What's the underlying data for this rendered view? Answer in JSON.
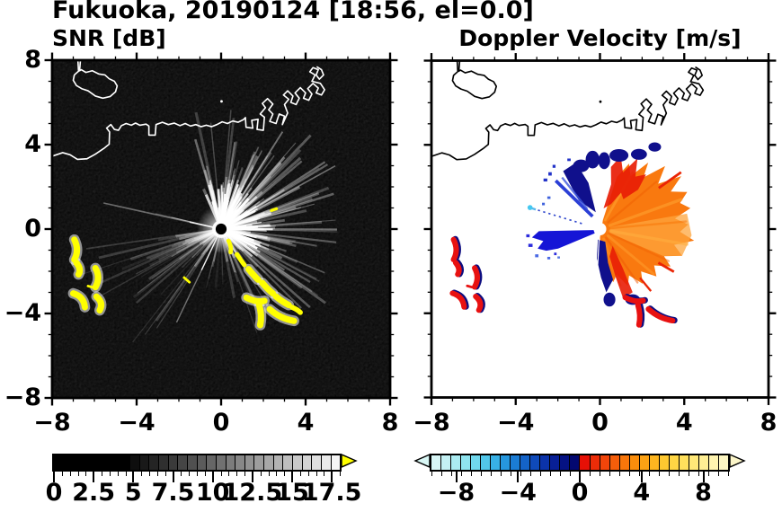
{
  "figure": {
    "title": "Fukuoka, 20190124 [18:56, el=0.0]",
    "station": "Fukuoka",
    "date": "20190124",
    "time": "18:56",
    "elevation": "0.0"
  },
  "axes": {
    "xlim": [
      -8,
      8
    ],
    "ylim": [
      -8,
      8
    ],
    "major_tick_values": [
      -8,
      -4,
      0,
      4,
      8
    ],
    "minor_tick_step": 1
  },
  "panels": [
    {
      "id": "snr",
      "title": "SNR [dB]",
      "xtick_labels": [
        "−8",
        "−4",
        "0",
        "4",
        "8"
      ],
      "ytick_values": [
        8,
        4,
        0,
        -4,
        -8
      ],
      "ytick_labels": [
        "8",
        "4",
        "0",
        "−4",
        "−8"
      ],
      "background": "#000000",
      "coastline_color": "#ffffff",
      "colorbar": {
        "min": 0,
        "max": 18,
        "cells": 30,
        "tick_values": [
          0,
          2.5,
          5,
          7.5,
          10,
          12.5,
          15,
          17.5
        ],
        "tick_labels": [
          "0",
          "2.5",
          "5",
          "7.5",
          "10",
          "12.5",
          "15",
          "17.5"
        ],
        "minor_tick_step": 0.5,
        "style": "grayscale black to white",
        "black_below_value": 5,
        "overflow_arrow_color": "#ffff00"
      }
    },
    {
      "id": "doppler",
      "title": "Doppler Velocity [m/s]",
      "xtick_labels": [
        "−8",
        "−4",
        "0",
        "4",
        "8"
      ],
      "background": "#ffffff",
      "coastline_color": "#000000",
      "colorbar": {
        "min": -9.6,
        "max": 9.6,
        "cells": 30,
        "tick_values": [
          -8,
          -4,
          0,
          4,
          8
        ],
        "tick_labels": [
          "−8",
          "−4",
          "0",
          "4",
          "8"
        ],
        "underflow_arrow_color": "#d9f7f5",
        "overflow_arrow_color": "#fcf6c9",
        "cell_colors": [
          "#d8f6f6",
          "#c4f1f4",
          "#abecf2",
          "#8fe4ef",
          "#71d8ed",
          "#52c7ea",
          "#38b0e5",
          "#2697de",
          "#1b7cd4",
          "#1463c8",
          "#0f4aba",
          "#0b33aa",
          "#081f96",
          "#051283",
          "#030870",
          "#e61006",
          "#ec2c08",
          "#f1450a",
          "#f55e0a",
          "#f8760a",
          "#fa8d0c",
          "#fca214",
          "#fdb520",
          "#fec830",
          "#ffd644",
          "#ffe05c",
          "#ffe878",
          "#ffef94",
          "#fff4b0",
          "#fdf6c2"
        ]
      }
    }
  ],
  "chart_data": [
    {
      "type": "heatmap",
      "title": "SNR [dB]",
      "xlim": [
        -8,
        8
      ],
      "ylim": [
        -8,
        8
      ],
      "xticks": [
        -8,
        -4,
        0,
        4,
        8
      ],
      "yticks": [
        -8,
        -4,
        0,
        4,
        8
      ],
      "minor_tick_step": 1,
      "grid": false,
      "colorbar": {
        "orientation": "horizontal",
        "range": [
          0,
          18
        ],
        "ticks": [
          0,
          2.5,
          5,
          7.5,
          10,
          12.5,
          15,
          17.5
        ],
        "colormap": "black (0-5 dB) stepping to white (18 dB), yellow overflow arrow"
      },
      "content": {
        "radar_center_xy": [
          0,
          0
        ],
        "bright_echo_fan_azimuth_deg": [
          335,
          170
        ],
        "gray_echo_fan_azimuth_deg": [
          205,
          265
        ],
        "blocked_dark_sectors_azimuth_deg": [
          [
            170,
            205
          ],
          [
            265,
            335
          ]
        ],
        "thin_isolated_rays_azimuth_deg": [
          205.5,
          282.5
        ],
        "high_snr_yellow_arc_chain_xy": [
          [
            0.4,
            -0.7
          ],
          [
            1.0,
            -1.5
          ],
          [
            1.5,
            -2.1
          ],
          [
            2.2,
            -2.8
          ],
          [
            2.9,
            -3.4
          ],
          [
            3.6,
            -3.9
          ]
        ],
        "high_snr_yellow_arcs_west_xy": [
          [
            -6.9,
            -1.0
          ],
          [
            -6.8,
            -1.9
          ],
          [
            -5.8,
            -2.3
          ],
          [
            -6.7,
            -3.3
          ],
          [
            -5.7,
            -3.5
          ]
        ],
        "high_snr_yellow_arcs_south_xy": [
          [
            1.6,
            -3.4
          ],
          [
            1.9,
            -4.1
          ],
          [
            2.9,
            -4.1
          ]
        ],
        "isolated_yellow_echo_xy": [
          [
            2.5,
            0.9
          ],
          [
            -1.6,
            -2.4
          ]
        ],
        "coastline": "Hakata Bay shoreline with island top-left, harbor piers top-right",
        "background": "#000000"
      }
    },
    {
      "type": "heatmap",
      "title": "Doppler Velocity [m/s]",
      "xlim": [
        -8,
        8
      ],
      "ylim": [
        -8,
        8
      ],
      "xticks": [
        -8,
        -4,
        0,
        4,
        8
      ],
      "yticks": [
        -8,
        -4,
        0,
        4,
        8
      ],
      "minor_tick_step": 1,
      "grid": false,
      "colorbar": {
        "orientation": "horizontal",
        "range": [
          -9.6,
          9.6
        ],
        "ticks": [
          -8,
          -4,
          0,
          4,
          8
        ],
        "colormap": "pale cyan to dark navy (negative), red to pale yellow (positive), arrows both ends"
      },
      "content": {
        "radar_center_xy": [
          0,
          0
        ],
        "positive_velocity_fan": {
          "azimuth_deg": [
            15,
            178
          ],
          "radius": [
            0,
            4.6
          ],
          "value": "+2 to +9 m/s (orange/red)"
        },
        "negative_velocity_wedge": {
          "azimuth_deg": [
            245,
            270
          ],
          "radius": [
            0,
            3.4
          ],
          "value": "-4 to -9 m/s (blue)"
        },
        "navy_patches_azimuth_deg": [
          [
            326,
            355
          ],
          [
            170,
            190
          ]
        ],
        "dotted_blue_ray": {
          "azimuth_deg": 287,
          "end_xy": [
            -3.3,
            1.1
          ]
        },
        "red_navy_arcs_west_xy": [
          [
            -6.9,
            -1.0
          ],
          [
            -6.8,
            -1.9
          ],
          [
            -5.8,
            -2.3
          ],
          [
            -6.7,
            -3.3
          ],
          [
            -5.7,
            -3.5
          ]
        ],
        "red_navy_arcs_south_xy": [
          [
            1.6,
            -3.4
          ],
          [
            1.9,
            -4.1
          ],
          [
            2.9,
            -4.1
          ]
        ],
        "coastline": "same shoreline as SNR panel, drawn black on white",
        "background": "#ffffff"
      }
    }
  ]
}
